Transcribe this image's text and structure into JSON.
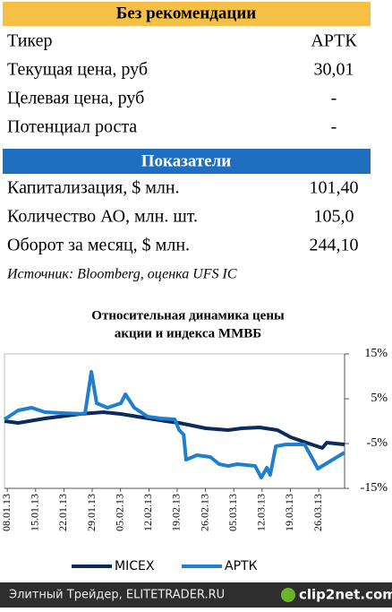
{
  "table": {
    "title": "Без рекомендации",
    "rows": [
      [
        "Тикер",
        "АРТК"
      ],
      [
        "Текущая цена, руб",
        "30,01"
      ],
      [
        "Целевая цена, руб",
        "-"
      ],
      [
        "Потенциал роста",
        "-"
      ]
    ],
    "section": "Показатели",
    "rows2": [
      [
        "Капитализация, $ млн.",
        "101,40"
      ],
      [
        "Количество АО, млн. шт.",
        "105,0"
      ],
      [
        "Оборот за месяц, $ млн.",
        "244,10"
      ]
    ]
  },
  "source": "Источник: Bloomberg, оценка UFS IC",
  "chart_data": {
    "type": "line",
    "title": [
      "Относительная динамика цены",
      "акции и индекса ММВБ"
    ],
    "xlim": [
      -0.7,
      83.4
    ],
    "xticks": [
      {
        "value": 0,
        "label": "08.01.13"
      },
      {
        "value": 7,
        "label": "15.01.13"
      },
      {
        "value": 14,
        "label": "22.01.13"
      },
      {
        "value": 21,
        "label": "29.01.13"
      },
      {
        "value": 28,
        "label": "05.02.13"
      },
      {
        "value": 35,
        "label": "12.02.13"
      },
      {
        "value": 42,
        "label": "19.02.13"
      },
      {
        "value": 49,
        "label": "26.02.13"
      },
      {
        "value": 56,
        "label": "05.03.13"
      },
      {
        "value": 63,
        "label": "12.03.13"
      },
      {
        "value": 70,
        "label": "19.03.13"
      },
      {
        "value": 77,
        "label": "26.03.13"
      }
    ],
    "ylim": [
      -15,
      15
    ],
    "yticks": [
      {
        "value": 15,
        "label": "15%"
      },
      {
        "value": 5,
        "label": "5%"
      },
      {
        "value": -5,
        "label": "-5%"
      },
      {
        "value": -15,
        "label": "-15%"
      }
    ],
    "series": [
      {
        "name": "MICEX",
        "color": "#0d2a5c",
        "x": [
          -0.7,
          2.7,
          9.3,
          18.1,
          23.7,
          28.1,
          33.6,
          39.2,
          42.5,
          49.1,
          54.6,
          58,
          62.4,
          66.8,
          70.1,
          74.6,
          77.9,
          79,
          83.4
        ],
        "values": [
          0,
          -0.4,
          0.6,
          1.6,
          2,
          1.6,
          0.8,
          0,
          -0.4,
          -1.6,
          -2,
          -1.6,
          -1.4,
          -2,
          -3.6,
          -5,
          -6,
          -4.8,
          -5.2
        ]
      },
      {
        "name": "АРТК",
        "color": "#1f7fce",
        "x": [
          -0.7,
          2.7,
          6,
          9.3,
          13.7,
          19.2,
          20.8,
          22.1,
          24.8,
          28.1,
          29.2,
          31.4,
          34.7,
          38.1,
          41.4,
          42.5,
          43.6,
          44.2,
          46.9,
          50.2,
          52.4,
          54.6,
          56.9,
          61.3,
          62.8,
          64.2,
          65,
          66.4,
          69,
          73.5,
          76.8,
          79,
          83.4
        ],
        "values": [
          0.4,
          2.4,
          3,
          2,
          1.8,
          1.6,
          11,
          4,
          3,
          4,
          6,
          3,
          1,
          0.6,
          0.4,
          -2,
          -3,
          -8.6,
          -7.6,
          -8,
          -9.6,
          -10,
          -9.6,
          -10,
          -12.6,
          -10.4,
          -12,
          -5.6,
          -5.2,
          -5.2,
          -10.6,
          -9.4,
          -7
        ]
      }
    ]
  },
  "footer": {
    "text": "Элитный Трейдер, ELITETRADER.RU",
    "logo": "clip2net.com"
  }
}
